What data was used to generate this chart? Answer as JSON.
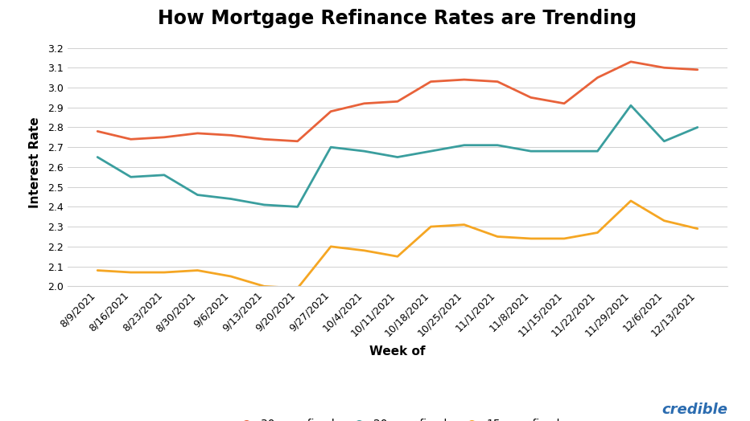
{
  "title": "How Mortgage Refinance Rates are Trending",
  "xlabel": "Week of",
  "ylabel": "Interest Rate",
  "ylim": [
    2.0,
    3.25
  ],
  "yticks": [
    2.0,
    2.1,
    2.2,
    2.3,
    2.4,
    2.5,
    2.6,
    2.7,
    2.8,
    2.9,
    3.0,
    3.1,
    3.2
  ],
  "categories": [
    "8/9/2021",
    "8/16/2021",
    "8/23/2021",
    "8/30/2021",
    "9/6/2021",
    "9/13/2021",
    "9/20/2021",
    "9/27/2021",
    "10/4/2021",
    "10/11/2021",
    "10/18/2021",
    "10/25/2021",
    "11/1/2021",
    "11/8/2021",
    "11/15/2021",
    "11/22/2021",
    "11/29/2021",
    "12/6/2021",
    "12/13/2021"
  ],
  "series": {
    "30-year fixed": {
      "color": "#E8623A",
      "values": [
        2.78,
        2.74,
        2.75,
        2.77,
        2.76,
        2.74,
        2.73,
        2.88,
        2.92,
        2.93,
        3.03,
        3.04,
        3.03,
        2.95,
        2.92,
        3.05,
        3.13,
        3.1,
        3.09
      ]
    },
    "20-year-fixed": {
      "color": "#3A9E9E",
      "values": [
        2.65,
        2.55,
        2.56,
        2.46,
        2.44,
        2.41,
        2.4,
        2.7,
        2.68,
        2.65,
        2.68,
        2.71,
        2.71,
        2.68,
        2.68,
        2.68,
        2.91,
        2.73,
        2.8
      ]
    },
    "15-year-fixed": {
      "color": "#F5A623",
      "values": [
        2.08,
        2.07,
        2.07,
        2.08,
        2.05,
        2.0,
        1.99,
        2.2,
        2.18,
        2.15,
        2.3,
        2.31,
        2.25,
        2.24,
        2.24,
        2.27,
        2.43,
        2.33,
        2.29
      ]
    }
  },
  "background_color": "#ffffff",
  "grid_color": "#d0d0d0",
  "title_fontsize": 17,
  "axis_label_fontsize": 11,
  "tick_fontsize": 9,
  "legend_fontsize": 10,
  "credible_text": "credible",
  "credible_color": "#2B6CB0",
  "line_width": 2.0
}
